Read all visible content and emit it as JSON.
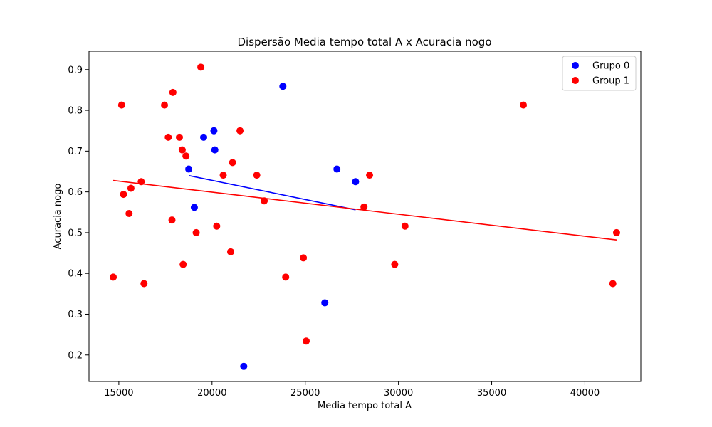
{
  "chart_data": {
    "type": "scatter",
    "title": "Dispersão Media tempo total A x Acuracia nogo",
    "xlabel": "Media tempo total A",
    "ylabel": "Acuracia nogo",
    "xlim": [
      13400,
      43000
    ],
    "ylim": [
      0.135,
      0.945
    ],
    "xticks": [
      15000,
      20000,
      25000,
      30000,
      35000,
      40000
    ],
    "yticks": [
      0.2,
      0.3,
      0.4,
      0.5,
      0.6,
      0.7,
      0.8,
      0.9
    ],
    "legend_position": "top-right",
    "grid": false,
    "series": [
      {
        "name": "Grupo 0",
        "color": "#0000ff",
        "points": [
          [
            18750,
            0.656
          ],
          [
            19050,
            0.562
          ],
          [
            19550,
            0.734
          ],
          [
            20100,
            0.75
          ],
          [
            20150,
            0.703
          ],
          [
            21700,
            0.172
          ],
          [
            23800,
            0.859
          ],
          [
            26050,
            0.328
          ],
          [
            26700,
            0.656
          ],
          [
            27700,
            0.625
          ]
        ],
        "fit_line": [
          [
            18750,
            0.64
          ],
          [
            27700,
            0.556
          ]
        ]
      },
      {
        "name": "Group 1",
        "color": "#ff0000",
        "points": [
          [
            14700,
            0.391
          ],
          [
            15150,
            0.813
          ],
          [
            15250,
            0.594
          ],
          [
            15550,
            0.547
          ],
          [
            15650,
            0.609
          ],
          [
            16200,
            0.625
          ],
          [
            16350,
            0.375
          ],
          [
            17450,
            0.813
          ],
          [
            17650,
            0.734
          ],
          [
            17850,
            0.531
          ],
          [
            17900,
            0.844
          ],
          [
            18250,
            0.734
          ],
          [
            18400,
            0.703
          ],
          [
            18450,
            0.422
          ],
          [
            18600,
            0.688
          ],
          [
            19150,
            0.5
          ],
          [
            19400,
            0.906
          ],
          [
            20250,
            0.516
          ],
          [
            20600,
            0.641
          ],
          [
            21000,
            0.453
          ],
          [
            21100,
            0.672
          ],
          [
            21500,
            0.75
          ],
          [
            22400,
            0.641
          ],
          [
            22800,
            0.578
          ],
          [
            23950,
            0.391
          ],
          [
            24900,
            0.438
          ],
          [
            25050,
            0.234
          ],
          [
            28150,
            0.563
          ],
          [
            28450,
            0.641
          ],
          [
            29800,
            0.422
          ],
          [
            30350,
            0.516
          ],
          [
            36700,
            0.813
          ],
          [
            41500,
            0.375
          ],
          [
            41700,
            0.5
          ]
        ],
        "fit_line": [
          [
            14700,
            0.628
          ],
          [
            41700,
            0.482
          ]
        ]
      }
    ]
  }
}
